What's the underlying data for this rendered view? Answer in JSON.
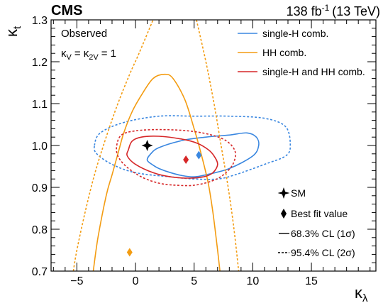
{
  "header": {
    "experiment": "CMS",
    "luminosity_value": "138 fb",
    "luminosity_exp": "-1",
    "luminosity_energy": "(13 TeV)"
  },
  "annotations": {
    "line1": "Observed",
    "line2_main": "κ",
    "line2_sub1": "V",
    "line2_eq": "= κ",
    "line2_sub2": "2V",
    "line2_tail": "= 1"
  },
  "axis_labels": {
    "x_main": "κ",
    "x_sub": "λ",
    "y_main": "κ",
    "y_sub": "t"
  },
  "legend_top": [
    {
      "label": "single-H comb.",
      "color": "#3a87e0"
    },
    {
      "label": "HH comb.",
      "color": "#f39c12"
    },
    {
      "label": "single-H and HH comb.",
      "color": "#d62728"
    }
  ],
  "legend_bottom": {
    "sm": "SM",
    "best_fit": "Best fit value",
    "cl68": "68.3% CL (1σ)",
    "cl95": "95.4% CL (2σ)"
  },
  "colors": {
    "singleH": "#3a87e0",
    "HH": "#f39c12",
    "combined": "#d62728",
    "sm": "#000000"
  },
  "chart_data": {
    "type": "contour",
    "xlabel": "κλ",
    "ylabel": "κt",
    "xlim": [
      -7.2,
      20.5
    ],
    "ylim": [
      0.7,
      1.3
    ],
    "xticks": [
      -5,
      0,
      5,
      10,
      15
    ],
    "xtick_labels": [
      "−5",
      "0",
      "5",
      "10",
      "15"
    ],
    "yticks": [
      0.7,
      0.8,
      0.9,
      1.0,
      1.1,
      1.2,
      1.3
    ],
    "ytick_labels": [
      "0.7",
      "0.8",
      "0.9",
      "1.0",
      "1.1",
      "1.2",
      "1.3"
    ],
    "points": [
      {
        "name": "SM",
        "x": 1.0,
        "y": 1.0,
        "color": "#000000",
        "marker": "star"
      },
      {
        "name": "single-H best fit",
        "x": 5.4,
        "y": 0.977,
        "color": "#3a87e0",
        "marker": "diamond"
      },
      {
        "name": "HH best fit",
        "x": -0.5,
        "y": 0.745,
        "color": "#f39c12",
        "marker": "diamond"
      },
      {
        "name": "combined best fit",
        "x": 4.3,
        "y": 0.966,
        "color": "#d62728",
        "marker": "diamond"
      }
    ],
    "contours": [
      {
        "name": "single-H comb.",
        "cl": "68.3%",
        "style": "solid",
        "color": "#3a87e0",
        "closed": true,
        "points": [
          [
            1.0,
            0.965
          ],
          [
            1.3,
            0.98
          ],
          [
            2.0,
            0.995
          ],
          [
            4.0,
            1.012
          ],
          [
            6.0,
            1.02
          ],
          [
            8.0,
            1.025
          ],
          [
            9.5,
            1.03
          ],
          [
            10.3,
            1.02
          ],
          [
            10.5,
            1.0
          ],
          [
            10.0,
            0.975
          ],
          [
            8.0,
            0.945
          ],
          [
            6.0,
            0.93
          ],
          [
            5.0,
            0.925
          ],
          [
            4.0,
            0.928
          ],
          [
            3.0,
            0.935
          ],
          [
            2.0,
            0.945
          ],
          [
            1.5,
            0.953
          ]
        ]
      },
      {
        "name": "single-H comb.",
        "cl": "95.4%",
        "style": "dashed",
        "color": "#3a87e0",
        "closed": true,
        "points": [
          [
            -3.5,
            1.0
          ],
          [
            -3.0,
            1.03
          ],
          [
            -1.0,
            1.055
          ],
          [
            2.0,
            1.07
          ],
          [
            5.0,
            1.07
          ],
          [
            8.0,
            1.07
          ],
          [
            11.0,
            1.065
          ],
          [
            12.8,
            1.045
          ],
          [
            13.2,
            1.0
          ],
          [
            12.8,
            0.975
          ],
          [
            11.0,
            0.955
          ],
          [
            8.5,
            0.93
          ],
          [
            7.0,
            0.92
          ],
          [
            5.0,
            0.92
          ],
          [
            3.0,
            0.925
          ],
          [
            0.0,
            0.935
          ],
          [
            -2.0,
            0.955
          ],
          [
            -3.3,
            0.98
          ]
        ]
      },
      {
        "name": "HH comb.",
        "cl": "68.3%",
        "style": "solid",
        "color": "#f39c12",
        "closed": false,
        "points": [
          [
            -3.6,
            0.7
          ],
          [
            -3.2,
            0.78
          ],
          [
            -2.5,
            0.88
          ],
          [
            -2.0,
            0.93
          ],
          [
            -1.5,
            0.98
          ],
          [
            -1.0,
            1.03
          ],
          [
            -0.3,
            1.08
          ],
          [
            0.5,
            1.12
          ],
          [
            1.5,
            1.16
          ],
          [
            2.5,
            1.17
          ],
          [
            3.2,
            1.16
          ],
          [
            4.2,
            1.11
          ],
          [
            5.0,
            1.04
          ],
          [
            5.6,
            0.98
          ],
          [
            6.2,
            0.91
          ],
          [
            6.6,
            0.84
          ],
          [
            7.0,
            0.75
          ],
          [
            7.2,
            0.7
          ]
        ]
      },
      {
        "name": "HH comb.",
        "cl": "95.4%",
        "style": "dashed",
        "color": "#f39c12",
        "closed": false,
        "points": [
          [
            -5.3,
            0.7
          ],
          [
            -5.0,
            0.75
          ],
          [
            -4.3,
            0.84
          ],
          [
            -3.5,
            0.93
          ],
          [
            -2.5,
            1.02
          ],
          [
            -1.5,
            1.1
          ],
          [
            -0.5,
            1.17
          ],
          [
            0.3,
            1.22
          ],
          [
            1.5,
            1.3
          ]
        ],
        "points2": [
          [
            5.2,
            1.3
          ],
          [
            6.0,
            1.2
          ],
          [
            6.7,
            1.1
          ],
          [
            7.3,
            1.0
          ],
          [
            7.9,
            0.9
          ],
          [
            8.4,
            0.8
          ],
          [
            8.8,
            0.7
          ]
        ]
      },
      {
        "name": "single-H and HH comb.",
        "cl": "68.3%",
        "style": "solid",
        "color": "#d62728",
        "closed": true,
        "points": [
          [
            -0.6,
            0.99
          ],
          [
            -0.3,
            1.01
          ],
          [
            0.5,
            1.02
          ],
          [
            2.0,
            1.022
          ],
          [
            4.0,
            1.015
          ],
          [
            5.3,
            1.005
          ],
          [
            6.2,
            0.99
          ],
          [
            6.7,
            0.975
          ],
          [
            7.0,
            0.955
          ],
          [
            6.6,
            0.935
          ],
          [
            5.8,
            0.925
          ],
          [
            4.5,
            0.922
          ],
          [
            3.0,
            0.925
          ],
          [
            1.5,
            0.935
          ],
          [
            0.0,
            0.955
          ],
          [
            -0.7,
            0.975
          ]
        ]
      },
      {
        "name": "single-H and HH comb.",
        "cl": "95.4%",
        "style": "dashed",
        "color": "#d62728",
        "closed": true,
        "points": [
          [
            -1.6,
            1.0
          ],
          [
            -1.2,
            1.025
          ],
          [
            0.0,
            1.035
          ],
          [
            2.0,
            1.038
          ],
          [
            4.5,
            1.035
          ],
          [
            6.5,
            1.025
          ],
          [
            7.8,
            1.01
          ],
          [
            8.5,
            0.985
          ],
          [
            8.3,
            0.955
          ],
          [
            7.5,
            0.93
          ],
          [
            6.5,
            0.915
          ],
          [
            5.0,
            0.905
          ],
          [
            3.5,
            0.905
          ],
          [
            2.0,
            0.91
          ],
          [
            0.5,
            0.925
          ],
          [
            -0.8,
            0.95
          ],
          [
            -1.5,
            0.975
          ]
        ]
      }
    ]
  }
}
